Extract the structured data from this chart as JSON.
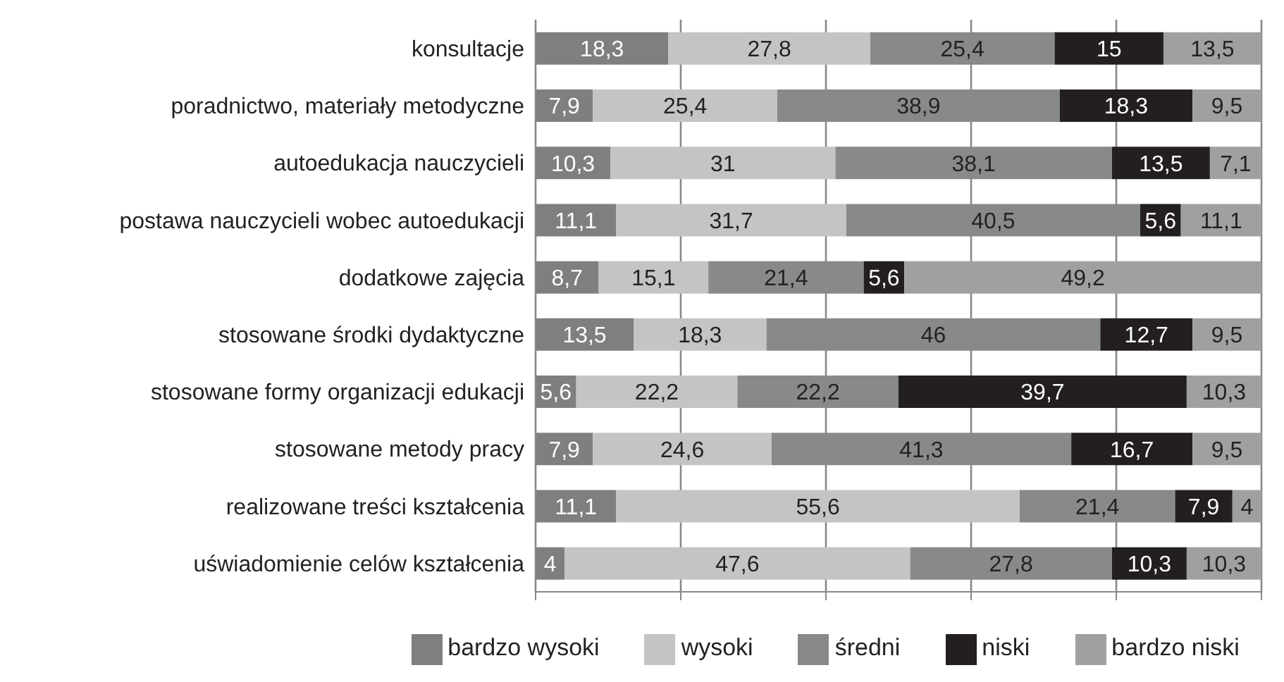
{
  "chart_data": {
    "type": "bar",
    "orientation": "horizontal",
    "stacked": true,
    "categories": [
      "konsultacje",
      "poradnictwo, materiały metodyczne",
      "autoedukacja nauczycieli",
      "postawa nauczycieli wobec autoedukacji",
      "dodatkowe zajęcia",
      "stosowane środki dydaktyczne",
      "stosowane formy organizacji edukacji",
      "stosowane metody pracy",
      "realizowane treści kształcenia",
      "uświadomienie celów kształcenia"
    ],
    "series": [
      {
        "name": "bardzo wysoki",
        "color": "#7f7f81",
        "values": [
          18.3,
          7.9,
          10.3,
          11.1,
          8.7,
          13.5,
          5.6,
          7.9,
          11.1,
          4
        ],
        "value_labels": [
          "18,3",
          "7,9",
          "10,3",
          "11,1",
          "8,7",
          "13,5",
          "5,6",
          "7,9",
          "11,1",
          "4"
        ]
      },
      {
        "name": "wysoki",
        "color": "#c4c4c6",
        "values": [
          27.8,
          25.4,
          31,
          31.7,
          15.1,
          18.3,
          22.2,
          24.6,
          55.6,
          47.6
        ],
        "value_labels": [
          "27,8",
          "25,4",
          "31",
          "31,7",
          "15,1",
          "18,3",
          "22,2",
          "24,6",
          "55,6",
          "47,6"
        ]
      },
      {
        "name": "średni",
        "color": "#88898b",
        "values": [
          25.4,
          38.9,
          38.1,
          40.5,
          21.4,
          46,
          22.2,
          41.3,
          21.4,
          27.8
        ],
        "value_labels": [
          "25,4",
          "38,9",
          "38,1",
          "40,5",
          "21,4",
          "46",
          "22,2",
          "41,3",
          "21,4",
          "27,8"
        ]
      },
      {
        "name": "niski",
        "color": "#231f20",
        "values": [
          15,
          18.3,
          13.5,
          5.6,
          5.6,
          12.7,
          39.7,
          16.7,
          7.9,
          10.3
        ],
        "value_labels": [
          "15",
          "18,3",
          "13,5",
          "5,6",
          "5,6",
          "12,7",
          "39,7",
          "16,7",
          "7,9",
          "10,3"
        ]
      },
      {
        "name": "bardzo niski",
        "color": "#a0a0a2",
        "values": [
          13.5,
          9.5,
          7.1,
          11.1,
          49.2,
          9.5,
          10.3,
          9.5,
          4,
          10.3
        ],
        "value_labels": [
          "13,5",
          "9,5",
          "7,1",
          "11,1",
          "49,2",
          "9,5",
          "10,3",
          "9,5",
          "4",
          "10,3"
        ]
      }
    ],
    "xlim": [
      0,
      100
    ],
    "grid": "x",
    "tick_labels": "y",
    "legend": "bottom"
  }
}
